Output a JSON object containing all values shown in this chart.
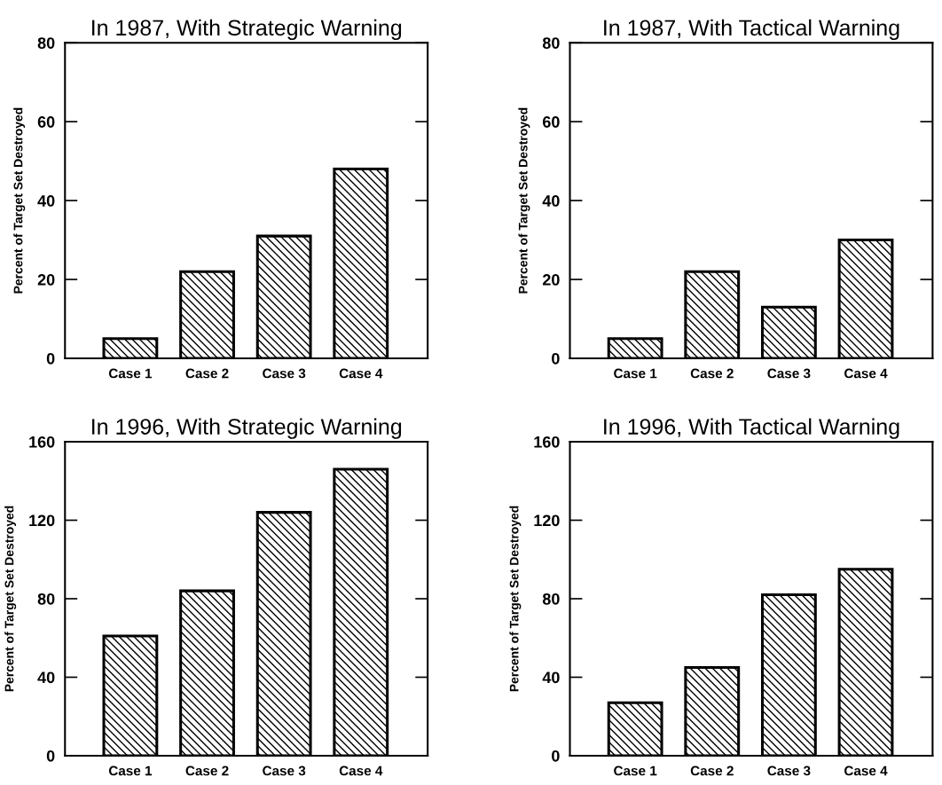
{
  "chart_data": [
    {
      "type": "bar",
      "title": "In 1987, With Strategic Warning",
      "ylabel": "Percent of Target Set Destroyed",
      "categories": [
        "Case 1",
        "Case 2",
        "Case 3",
        "Case 4"
      ],
      "values": [
        5,
        22,
        31,
        48
      ],
      "color": "#000000",
      "ylim": [
        0,
        80
      ],
      "yticks": [
        0,
        20,
        40,
        60,
        80
      ],
      "grid": false
    },
    {
      "type": "bar",
      "title": "In 1987, With Tactical Warning",
      "ylabel": "Percent of Target Set Destroyed",
      "categories": [
        "Case 1",
        "Case 2",
        "Case 3",
        "Case 4"
      ],
      "values": [
        5,
        22,
        13,
        30
      ],
      "color": "#000000",
      "ylim": [
        0,
        80
      ],
      "yticks": [
        0,
        20,
        40,
        60,
        80
      ],
      "grid": false
    },
    {
      "type": "bar",
      "title": "In 1996, With Strategic Warning",
      "ylabel": "Percent of Target Set Destroyed",
      "categories": [
        "Case 1",
        "Case 2",
        "Case 3",
        "Case 4"
      ],
      "values": [
        61,
        84,
        124,
        146
      ],
      "color": "#000000",
      "ylim": [
        0,
        160
      ],
      "yticks": [
        0,
        40,
        80,
        120,
        160
      ],
      "grid": false
    },
    {
      "type": "bar",
      "title": "In 1996, With Tactical Warning",
      "ylabel": "Percent of Target Set Destroyed",
      "categories": [
        "Case 1",
        "Case 2",
        "Case 3",
        "Case 4"
      ],
      "values": [
        27,
        45,
        82,
        95
      ],
      "color": "#000000",
      "ylim": [
        0,
        160
      ],
      "yticks": [
        0,
        40,
        80,
        120,
        160
      ],
      "grid": false
    }
  ]
}
